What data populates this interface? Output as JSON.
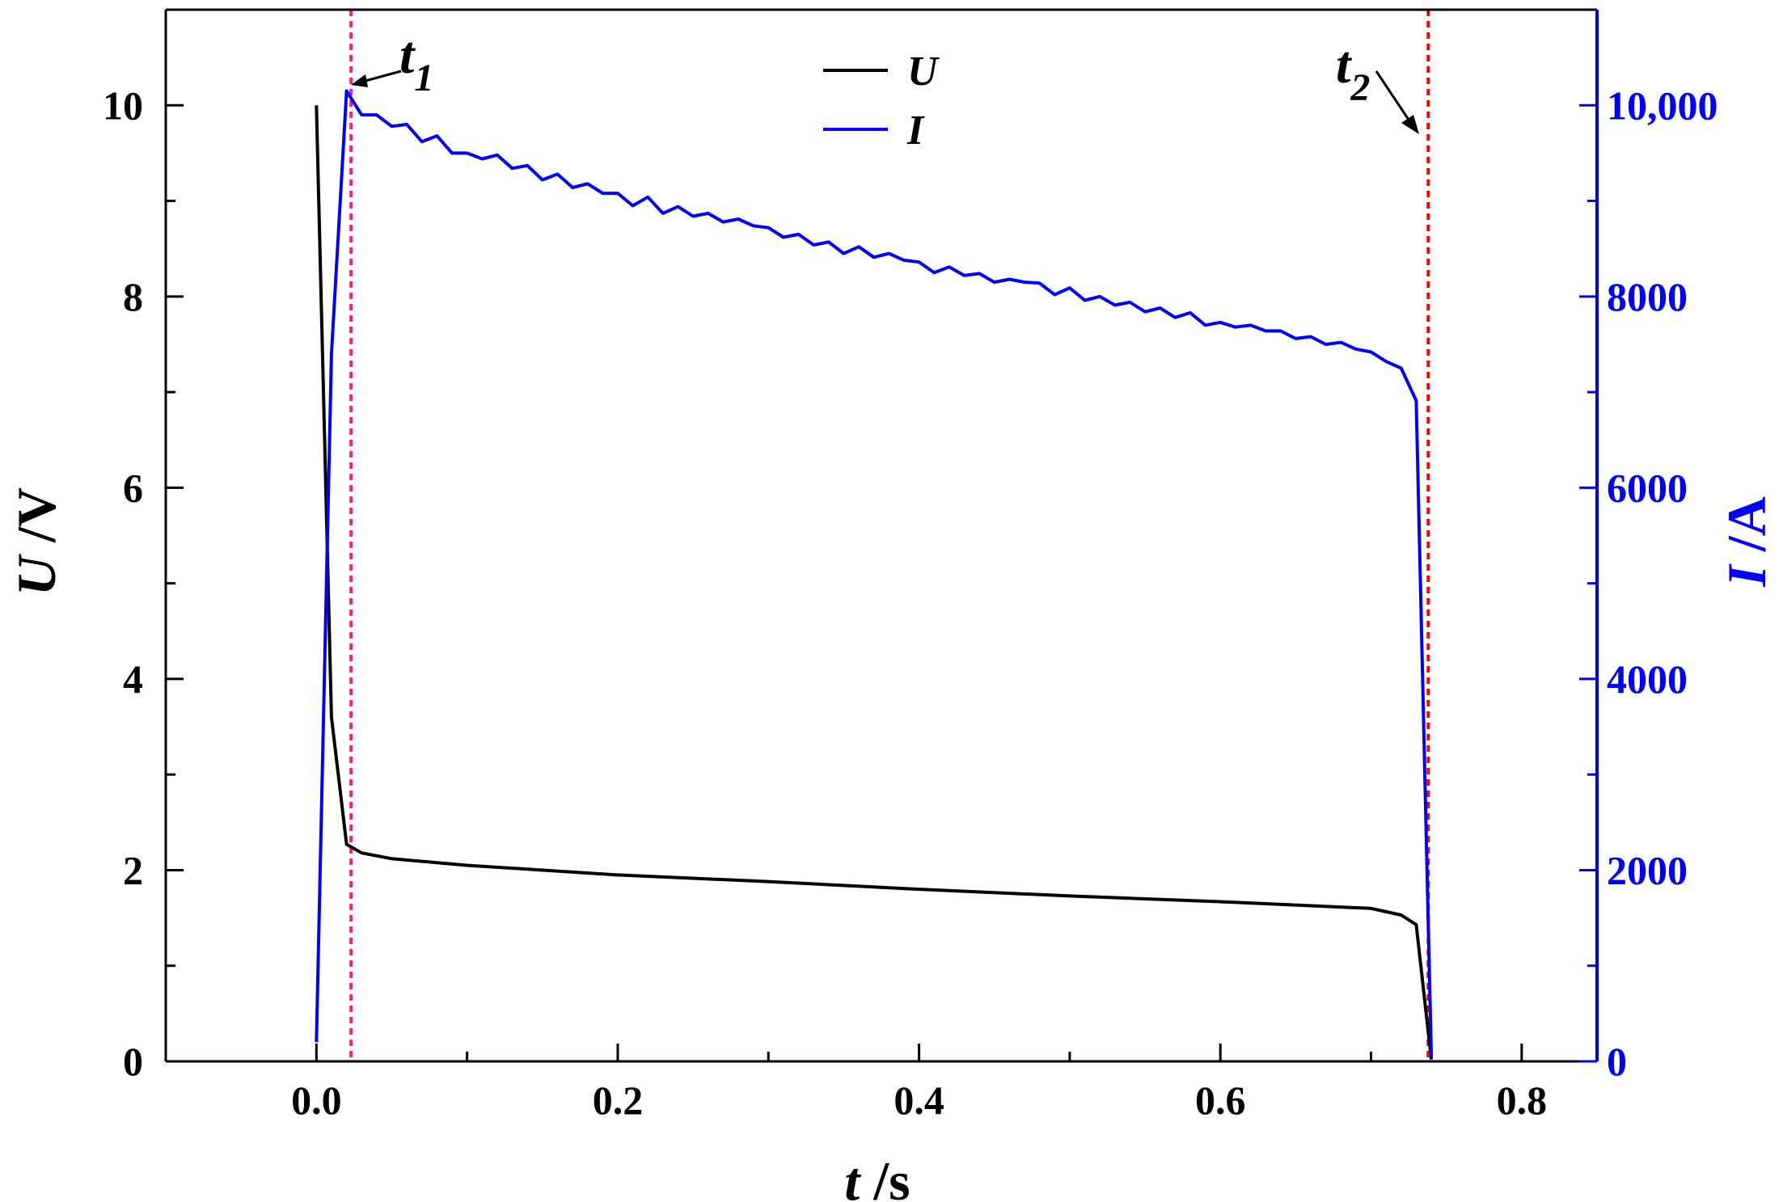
{
  "chart_data": {
    "type": "line",
    "xlabel": {
      "var": "t",
      "unit": " /s"
    },
    "ylabel_left": {
      "var": "U",
      "unit": " /V"
    },
    "ylabel_right": {
      "var": "I",
      "unit": " /A"
    },
    "xlim": [
      -0.1,
      0.85
    ],
    "ylim_left": [
      0,
      11
    ],
    "ylim_right": [
      0,
      11000
    ],
    "x_ticks": [
      0.0,
      0.2,
      0.4,
      0.6,
      0.8
    ],
    "x_tick_labels": [
      "0.0",
      "0.2",
      "0.4",
      "0.6",
      "0.8"
    ],
    "y_left_ticks": [
      0,
      2,
      4,
      6,
      8,
      10
    ],
    "y_left_tick_labels": [
      "0",
      "2",
      "4",
      "6",
      "8",
      "10"
    ],
    "y_right_ticks": [
      0,
      2000,
      4000,
      6000,
      8000,
      10000
    ],
    "y_right_tick_labels": [
      "0",
      "2000",
      "4000",
      "6000",
      "8000",
      "10,000"
    ],
    "grid": false,
    "legend_position": "top-center",
    "colors": {
      "U": "#000000",
      "I": "#0000ff",
      "t1_line": "#ff1a8c",
      "t2_line": "#ff0000",
      "right_axis": "#0000ff"
    },
    "annotations": [
      {
        "label": "t",
        "sub": "1",
        "x": 0.023
      },
      {
        "label": "t",
        "sub": "2",
        "x": 0.738
      }
    ],
    "series": [
      {
        "name": "U",
        "axis": "left",
        "color": "#000000",
        "x": [
          0.0,
          0.01,
          0.02,
          0.03,
          0.05,
          0.1,
          0.2,
          0.3,
          0.4,
          0.5,
          0.6,
          0.7,
          0.72,
          0.73,
          0.74
        ],
        "y": [
          10.0,
          3.6,
          2.27,
          2.18,
          2.12,
          2.05,
          1.95,
          1.88,
          1.8,
          1.73,
          1.67,
          1.6,
          1.53,
          1.43,
          0.02
        ]
      },
      {
        "name": "I",
        "axis": "right",
        "color": "#0000ff",
        "x": [
          0.0,
          0.01,
          0.02,
          0.03,
          0.04,
          0.05,
          0.06,
          0.07,
          0.08,
          0.09,
          0.1,
          0.11,
          0.12,
          0.13,
          0.14,
          0.15,
          0.16,
          0.17,
          0.18,
          0.19,
          0.2,
          0.21,
          0.22,
          0.23,
          0.24,
          0.25,
          0.26,
          0.27,
          0.28,
          0.29,
          0.3,
          0.31,
          0.32,
          0.33,
          0.34,
          0.35,
          0.36,
          0.37,
          0.38,
          0.39,
          0.4,
          0.41,
          0.42,
          0.43,
          0.44,
          0.45,
          0.46,
          0.47,
          0.48,
          0.49,
          0.5,
          0.51,
          0.52,
          0.53,
          0.54,
          0.55,
          0.56,
          0.57,
          0.58,
          0.59,
          0.6,
          0.61,
          0.62,
          0.63,
          0.64,
          0.65,
          0.66,
          0.67,
          0.68,
          0.69,
          0.7,
          0.71,
          0.72,
          0.73,
          0.74
        ],
        "y": [
          200,
          7400,
          10150,
          9900,
          9900,
          9780,
          9800,
          9620,
          9680,
          9500,
          9500,
          9440,
          9480,
          9340,
          9370,
          9220,
          9280,
          9140,
          9180,
          9080,
          9080,
          8950,
          9040,
          8870,
          8940,
          8840,
          8870,
          8780,
          8810,
          8740,
          8720,
          8620,
          8650,
          8540,
          8570,
          8450,
          8520,
          8410,
          8450,
          8380,
          8360,
          8250,
          8310,
          8220,
          8240,
          8150,
          8180,
          8150,
          8140,
          8020,
          8090,
          7960,
          8000,
          7910,
          7940,
          7840,
          7880,
          7780,
          7830,
          7700,
          7730,
          7680,
          7700,
          7640,
          7640,
          7560,
          7580,
          7500,
          7520,
          7450,
          7420,
          7320,
          7250,
          6910,
          50
        ]
      }
    ]
  }
}
